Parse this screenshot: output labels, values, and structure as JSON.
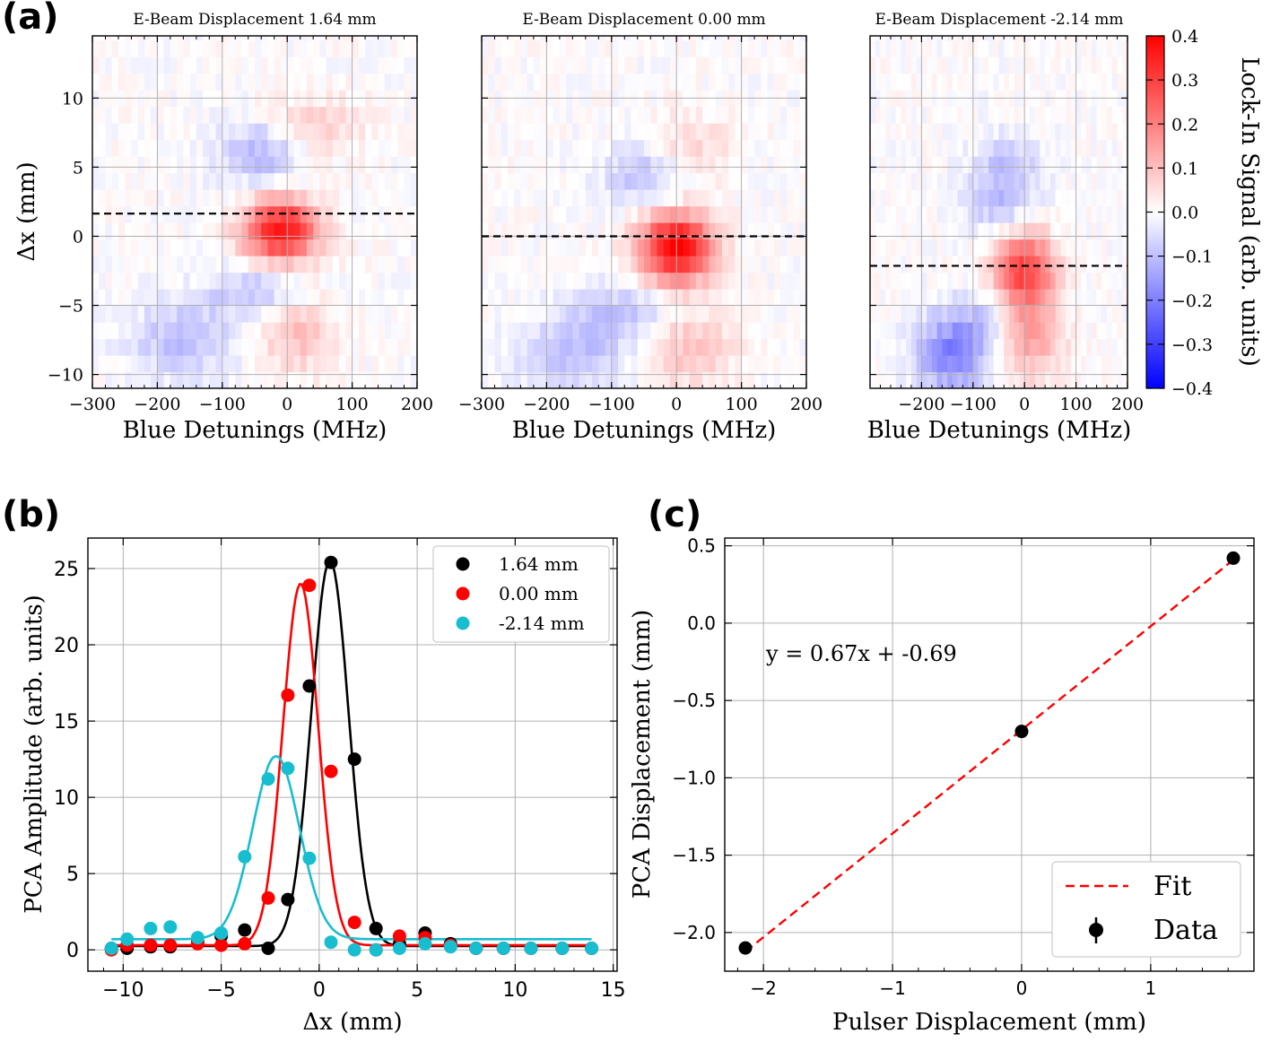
{
  "colors": {
    "black": "#000000",
    "red": "#ff0000",
    "cyan": "#17becf",
    "grid": "#b0b0b0",
    "blue": "#0000ff"
  },
  "panel_labels": [
    "(a)",
    "(b)",
    "(c)"
  ],
  "chart_data": [
    {
      "type": "heatmap",
      "panel": "(a)",
      "title": "E-Beam Displacement 1.64 mm",
      "xlabel": "Blue Detunings (MHz)",
      "ylabel": "Δx (mm)",
      "xlim": [
        -300,
        200
      ],
      "ylim": [
        -11,
        14.5
      ],
      "xticks": [
        -300,
        -200,
        -100,
        0,
        100,
        200
      ],
      "xtick_labels": [
        "−300",
        "−200",
        "−100",
        "0",
        "100",
        "200"
      ],
      "yticks": [
        -10,
        -5,
        0,
        5,
        10
      ],
      "ytick_labels": [
        "−10",
        "−5",
        "0",
        "5",
        "10"
      ],
      "dashed_line_y": 1.64,
      "features": [
        {
          "x": -10,
          "y": 0.5,
          "value": 0.38,
          "sx": 40,
          "sy": 1.6
        },
        {
          "x": -40,
          "y": 6,
          "value": -0.12,
          "sx": 45,
          "sy": 1.6
        },
        {
          "x": 40,
          "y": 8,
          "value": 0.08,
          "sx": 50,
          "sy": 1.6
        },
        {
          "x": -50,
          "y": -4,
          "value": -0.1,
          "sx": 50,
          "sy": 1.3
        },
        {
          "x": -160,
          "y": -7.5,
          "value": -0.1,
          "sx": 60,
          "sy": 2.0
        },
        {
          "x": 10,
          "y": -7,
          "value": 0.1,
          "sx": 45,
          "sy": 2.0
        }
      ]
    },
    {
      "type": "heatmap",
      "panel": "(a)",
      "title": "E-Beam Displacement 0.00 mm",
      "xlabel": "Blue Detunings (MHz)",
      "ylabel": "",
      "xlim": [
        -300,
        200
      ],
      "ylim": [
        -11,
        14.5
      ],
      "xticks": [
        -300,
        -200,
        -100,
        0,
        100,
        200
      ],
      "xtick_labels": [
        "−300",
        "−200",
        "−100",
        "0",
        "100",
        "200"
      ],
      "dashed_line_y": 0.0,
      "features": [
        {
          "x": 0,
          "y": -0.8,
          "value": 0.4,
          "sx": 40,
          "sy": 1.8
        },
        {
          "x": -50,
          "y": 4.5,
          "value": -0.1,
          "sx": 45,
          "sy": 1.6
        },
        {
          "x": 20,
          "y": 6.5,
          "value": 0.07,
          "sx": 45,
          "sy": 1.6
        },
        {
          "x": -80,
          "y": -5.5,
          "value": -0.1,
          "sx": 55,
          "sy": 1.4
        },
        {
          "x": -160,
          "y": -8.5,
          "value": -0.1,
          "sx": 60,
          "sy": 1.8
        },
        {
          "x": 20,
          "y": -8,
          "value": 0.1,
          "sx": 50,
          "sy": 2.0
        }
      ]
    },
    {
      "type": "heatmap",
      "panel": "(a)",
      "title": "E-Beam Displacement -2.14 mm",
      "xlabel": "Blue Detunings (MHz)",
      "ylabel": "",
      "xlim": [
        -300,
        200
      ],
      "ylim": [
        -11,
        14.5
      ],
      "xticks": [
        -200,
        -100,
        0,
        100,
        200
      ],
      "xtick_labels": [
        "−200",
        "−100",
        "0",
        "100",
        "200"
      ],
      "dashed_line_y": -2.14,
      "features": [
        {
          "x": 0,
          "y": -2.5,
          "value": 0.3,
          "sx": 40,
          "sy": 2.0
        },
        {
          "x": -50,
          "y": 2.5,
          "value": -0.1,
          "sx": 50,
          "sy": 1.6
        },
        {
          "x": -30,
          "y": 5.5,
          "value": -0.08,
          "sx": 45,
          "sy": 1.4
        },
        {
          "x": -140,
          "y": -8.5,
          "value": -0.2,
          "sx": 50,
          "sy": 2.0
        },
        {
          "x": 10,
          "y": -7.5,
          "value": 0.14,
          "sx": 45,
          "sy": 2.2
        },
        {
          "x": -70,
          "y": -6,
          "value": -0.07,
          "sx": 50,
          "sy": 1.4
        }
      ]
    },
    {
      "type": "colorbar",
      "label": "Lock-In Signal (arb. units)",
      "vmin": -0.4,
      "vmax": 0.4,
      "ticks": [
        -0.4,
        -0.3,
        -0.2,
        -0.1,
        0.0,
        0.1,
        0.2,
        0.3,
        0.4
      ],
      "tick_labels": [
        "−0.4",
        "−0.3",
        "−0.2",
        "−0.1",
        "0.0",
        "0.1",
        "0.2",
        "0.3",
        "0.4"
      ],
      "colormap": "bwr"
    },
    {
      "type": "scatter",
      "panel": "(b)",
      "xlabel": "Δx (mm)",
      "ylabel": "PCA Amplitude (arb. units)",
      "xlim": [
        -11.8,
        15.2
      ],
      "ylim": [
        -1.4,
        27
      ],
      "xticks": [
        -10,
        -5,
        0,
        5,
        10,
        15
      ],
      "xtick_labels": [
        "−10",
        "−5",
        "0",
        "5",
        "10",
        "15"
      ],
      "yticks": [
        0,
        5,
        10,
        15,
        20,
        25
      ],
      "ytick_labels": [
        "0",
        "5",
        "10",
        "15",
        "20",
        "25"
      ],
      "legend_position": "top-right",
      "series": [
        {
          "name": "1.64 mm",
          "color": "#000000",
          "x": [
            -10.6,
            -9.8,
            -8.6,
            -7.6,
            -6.2,
            -5.0,
            -3.8,
            -2.6,
            -1.6,
            -0.5,
            0.6,
            1.8,
            2.9,
            4.1,
            5.4,
            6.7,
            8.0,
            9.4,
            10.8,
            12.4,
            13.9
          ],
          "y": [
            0.1,
            0.1,
            0.2,
            0.2,
            0.5,
            0.9,
            1.3,
            0.1,
            3.3,
            17.3,
            25.4,
            12.5,
            1.4,
            0.4,
            1.1,
            0.4,
            0.1,
            0.1,
            0.1,
            0.1,
            0.1
          ],
          "fit": {
            "amplitude": 25.3,
            "center": 0.55,
            "sigma": 0.95,
            "offset": 0.25
          }
        },
        {
          "name": "0.00 mm",
          "color": "#ff0000",
          "x": [
            -10.6,
            -9.8,
            -8.6,
            -7.6,
            -6.2,
            -5.0,
            -3.8,
            -2.6,
            -1.6,
            -0.5,
            0.6,
            1.8,
            2.9,
            4.1,
            5.4,
            6.7,
            8.0,
            9.4,
            10.8,
            12.4,
            13.9
          ],
          "y": [
            0.0,
            0.3,
            0.3,
            0.3,
            0.4,
            0.3,
            0.4,
            3.4,
            16.7,
            23.9,
            11.7,
            1.8,
            0.0,
            0.9,
            0.8,
            0.3,
            0.1,
            0.1,
            0.1,
            0.1,
            0.1
          ],
          "fit": {
            "amplitude": 23.7,
            "center": -0.95,
            "sigma": 0.9,
            "offset": 0.3
          }
        },
        {
          "name": "-2.14 mm",
          "color": "#17becf",
          "x": [
            -10.6,
            -9.8,
            -8.6,
            -7.6,
            -6.2,
            -5.0,
            -3.8,
            -2.6,
            -1.6,
            -0.5,
            0.6,
            1.8,
            2.9,
            4.1,
            5.4,
            6.7,
            8.0,
            9.4,
            10.8,
            12.4,
            13.9
          ],
          "y": [
            0.1,
            0.7,
            1.4,
            1.5,
            0.8,
            1.1,
            6.1,
            11.2,
            11.9,
            6.0,
            0.5,
            0.0,
            0.0,
            0.1,
            0.4,
            0.2,
            0.1,
            0.1,
            0.1,
            0.1,
            0.1
          ],
          "fit": {
            "amplitude": 12.0,
            "center": -2.2,
            "sigma": 1.2,
            "offset": 0.7
          }
        }
      ]
    },
    {
      "type": "scatter",
      "panel": "(c)",
      "xlabel": "Pulser Displacement (mm)",
      "ylabel": "PCA Displacement (mm)",
      "xlim": [
        -2.3,
        1.8
      ],
      "ylim": [
        -2.25,
        0.55
      ],
      "xticks": [
        -2,
        -1,
        0,
        1
      ],
      "xtick_labels": [
        "−2",
        "−1",
        "0",
        "1"
      ],
      "yticks": [
        -2.0,
        -1.5,
        -1.0,
        -0.5,
        0.0,
        0.5
      ],
      "ytick_labels": [
        "−2.0",
        "−1.5",
        "−1.0",
        "−0.5",
        "0.0",
        "0.5"
      ],
      "legend_position": "bottom-right",
      "annotation": "y = 0.67x + -0.69",
      "annotation_color": "#ff0000",
      "series": [
        {
          "name": "Data",
          "color": "#000000",
          "x": [
            -2.14,
            0.0,
            1.64
          ],
          "y": [
            -2.1,
            -0.7,
            0.42
          ]
        },
        {
          "name": "Fit",
          "color": "#ff0000",
          "style": "dashed",
          "slope": 0.67,
          "intercept": -0.69,
          "x_range": [
            -2.14,
            1.64
          ]
        }
      ]
    }
  ]
}
